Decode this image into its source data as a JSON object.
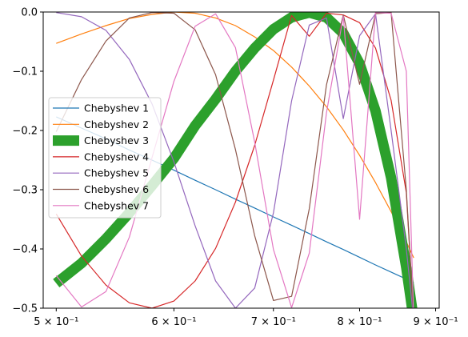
{
  "chart_data": {
    "type": "line",
    "title": "",
    "xlabel": "",
    "ylabel": "",
    "xscale": "log",
    "xlim": [
      0.49,
      0.905
    ],
    "ylim": [
      -0.5,
      0.0
    ],
    "grid": false,
    "legend_placement": "center-left",
    "x_ticks": [
      {
        "value": 0.5,
        "label": "5 × 10⁻¹"
      },
      {
        "value": 0.6,
        "label": "6 × 10⁻¹"
      },
      {
        "value": 0.7,
        "label": "7 × 10⁻¹"
      },
      {
        "value": 0.8,
        "label": "8 × 10⁻¹"
      },
      {
        "value": 0.9,
        "label": "9 × 10⁻¹"
      }
    ],
    "y_ticks": [
      {
        "value": 0.0,
        "label": "0.0"
      },
      {
        "value": -0.1,
        "label": "−0.1"
      },
      {
        "value": -0.2,
        "label": "−0.2"
      },
      {
        "value": -0.3,
        "label": "−0.3"
      },
      {
        "value": -0.4,
        "label": "−0.4"
      },
      {
        "value": -0.5,
        "label": "−0.5"
      }
    ],
    "x": [
      0.5,
      0.52,
      0.54,
      0.56,
      0.58,
      0.6,
      0.62,
      0.64,
      0.66,
      0.68,
      0.7,
      0.72,
      0.74,
      0.76,
      0.78,
      0.8,
      0.82,
      0.84,
      0.86,
      0.87
    ],
    "series": [
      {
        "name": "Chebyshev 1",
        "color": "#1f77b4",
        "width": 1.2,
        "values": [
          -0.177,
          -0.196,
          -0.214,
          -0.233,
          -0.25,
          -0.267,
          -0.284,
          -0.3,
          -0.316,
          -0.331,
          -0.346,
          -0.36,
          -0.374,
          -0.388,
          -0.401,
          -0.414,
          -0.427,
          -0.439,
          -0.451,
          -0.457
        ]
      },
      {
        "name": "Chebyshev 2",
        "color": "#ff7f0e",
        "width": 1.2,
        "values": [
          -0.053,
          -0.037,
          -0.023,
          -0.011,
          -0.004,
          -0.0,
          -0.002,
          -0.01,
          -0.023,
          -0.042,
          -0.065,
          -0.093,
          -0.125,
          -0.16,
          -0.199,
          -0.242,
          -0.288,
          -0.337,
          -0.388,
          -0.415
        ]
      },
      {
        "name": "Chebyshev 3",
        "color": "#2ca02c",
        "width": 13,
        "values": [
          -0.458,
          -0.424,
          -0.383,
          -0.339,
          -0.293,
          -0.247,
          -0.192,
          -0.147,
          -0.1,
          -0.061,
          -0.029,
          -0.009,
          -0.001,
          -0.009,
          -0.036,
          -0.087,
          -0.167,
          -0.28,
          -0.432,
          -0.52
        ]
      },
      {
        "name": "Chebyshev 4",
        "color": "#d62728",
        "width": 1.2,
        "values": [
          -0.341,
          -0.412,
          -0.461,
          -0.491,
          -0.5,
          -0.488,
          -0.454,
          -0.399,
          -0.321,
          -0.225,
          -0.115,
          -0.006,
          -0.041,
          -0.002,
          -0.005,
          -0.018,
          -0.061,
          -0.149,
          -0.305,
          -0.52
        ]
      },
      {
        "name": "Chebyshev 5",
        "color": "#9467bd",
        "width": 1.2,
        "values": [
          -0.001,
          -0.008,
          -0.031,
          -0.08,
          -0.155,
          -0.253,
          -0.361,
          -0.454,
          -0.5,
          -0.466,
          -0.339,
          -0.15,
          -0.022,
          -0.01,
          -0.18,
          -0.04,
          -0.003,
          -0.2,
          -0.4,
          -0.52
        ]
      },
      {
        "name": "Chebyshev 6",
        "color": "#8c564b",
        "width": 1.2,
        "values": [
          -0.202,
          -0.114,
          -0.049,
          -0.01,
          -0.001,
          -0.002,
          -0.03,
          -0.106,
          -0.232,
          -0.378,
          -0.487,
          -0.48,
          -0.332,
          -0.123,
          -0.005,
          -0.122,
          -0.003,
          -0.001,
          -0.3,
          -0.52
        ]
      },
      {
        "name": "Chebyshev 7",
        "color": "#e377c2",
        "width": 1.2,
        "values": [
          -0.445,
          -0.498,
          -0.472,
          -0.38,
          -0.246,
          -0.117,
          -0.024,
          -0.003,
          -0.06,
          -0.22,
          -0.401,
          -0.499,
          -0.407,
          -0.17,
          -0.007,
          -0.35,
          -0.001,
          -0.002,
          -0.1,
          -0.52
        ]
      }
    ]
  }
}
